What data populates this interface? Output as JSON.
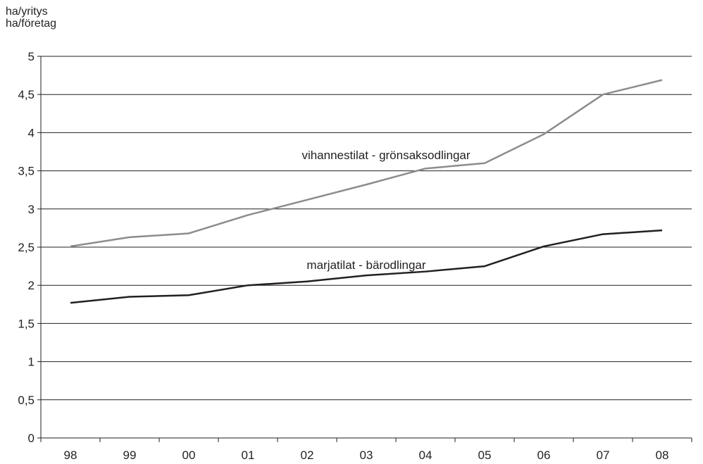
{
  "chart_data": {
    "type": "line",
    "ylabel_lines": [
      "ha/yritys",
      "ha/företag"
    ],
    "categories": [
      "98",
      "99",
      "00",
      "01",
      "02",
      "03",
      "04",
      "05",
      "06",
      "07",
      "08"
    ],
    "yticks": [
      "0",
      "0,5",
      "1",
      "1,5",
      "2",
      "2,5",
      "3",
      "3,5",
      "4",
      "4,5",
      "5"
    ],
    "ylim": [
      0,
      5
    ],
    "grid": true,
    "series": [
      {
        "name": "vihannestilat - grönsaksodlingar",
        "color": "#8c8c8c",
        "values": [
          2.51,
          2.63,
          2.68,
          2.92,
          3.12,
          3.32,
          3.53,
          3.6,
          3.98,
          4.5,
          4.69
        ]
      },
      {
        "name": "marjatilat - bärodlingar",
        "color": "#231f20",
        "values": [
          1.77,
          1.85,
          1.87,
          2.0,
          2.05,
          2.13,
          2.18,
          2.25,
          2.51,
          2.67,
          2.72
        ]
      }
    ]
  }
}
